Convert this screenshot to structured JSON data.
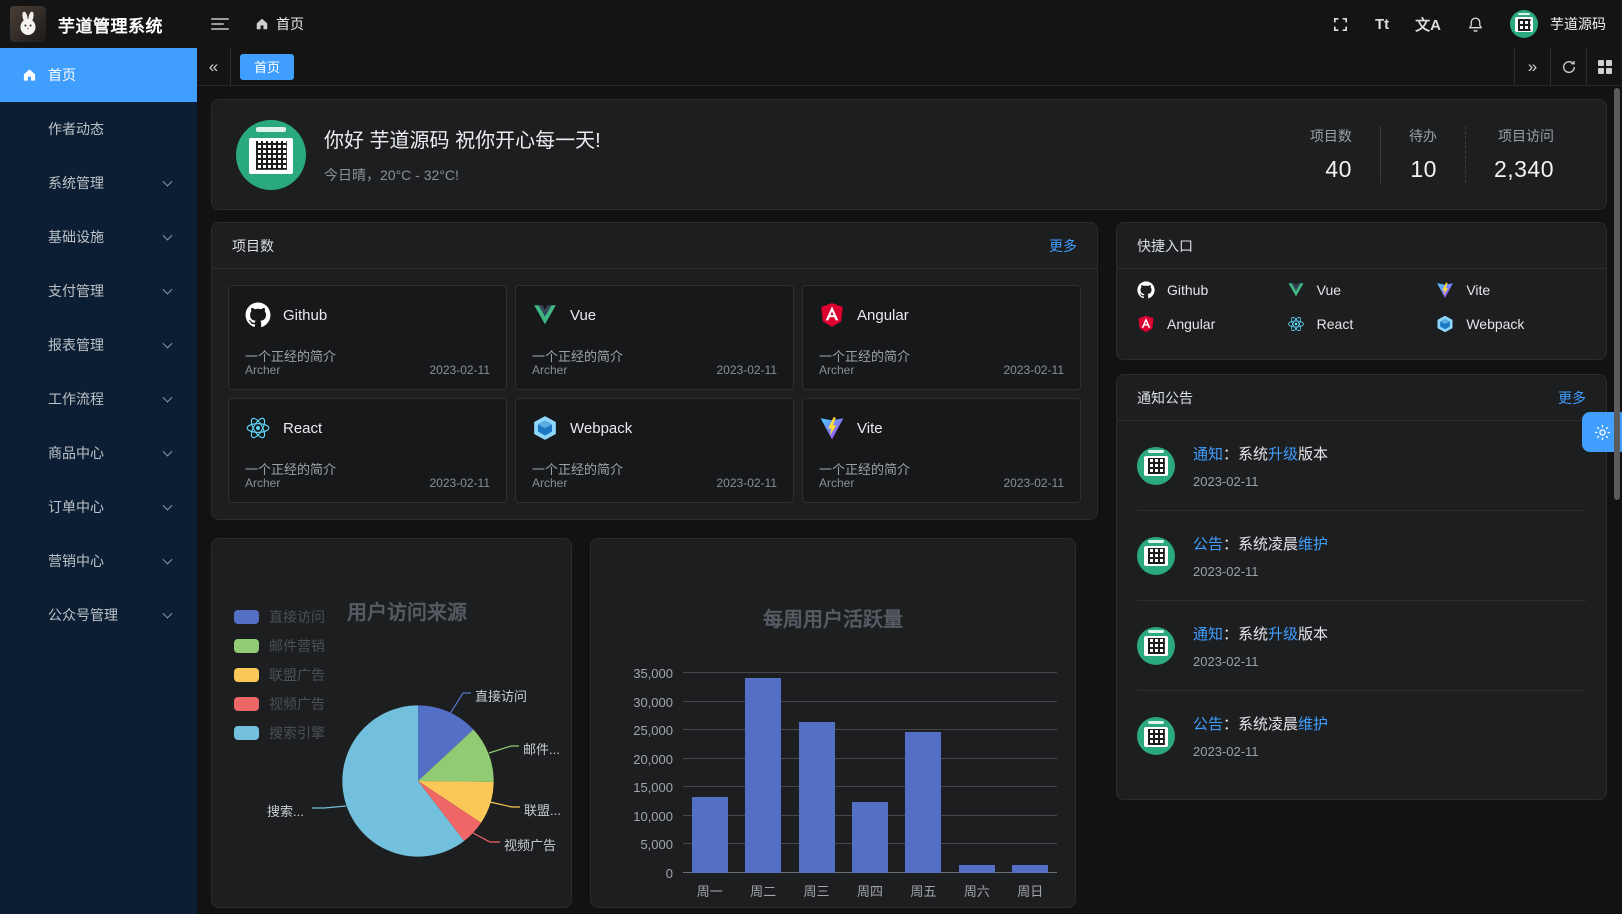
{
  "app": {
    "title": "芋道管理系统"
  },
  "header": {
    "breadcrumb_home": "首页",
    "font_icon_text": "Tt",
    "locale_icon_text": "文A",
    "user_name": "芋道源码"
  },
  "sidebar": {
    "items": [
      {
        "label": "首页",
        "active": true,
        "icon": "home",
        "arrow": false
      },
      {
        "label": "作者动态",
        "arrow": false
      },
      {
        "label": "系统管理",
        "arrow": true
      },
      {
        "label": "基础设施",
        "arrow": true
      },
      {
        "label": "支付管理",
        "arrow": true
      },
      {
        "label": "报表管理",
        "arrow": true
      },
      {
        "label": "工作流程",
        "arrow": true
      },
      {
        "label": "商品中心",
        "arrow": true
      },
      {
        "label": "订单中心",
        "arrow": true
      },
      {
        "label": "营销中心",
        "arrow": true
      },
      {
        "label": "公众号管理",
        "arrow": true
      }
    ]
  },
  "tabs": {
    "active": "首页",
    "collapse_icon": "«",
    "expand_icon": "»"
  },
  "welcome": {
    "greeting": "你好 芋道源码 祝你开心每一天!",
    "weather": "今日晴，20°C - 32°C!",
    "stats": [
      {
        "label": "项目数",
        "value": "40"
      },
      {
        "label": "待办",
        "value": "10"
      },
      {
        "label": "项目访问",
        "value": "2,340"
      }
    ]
  },
  "projects": {
    "title": "项目数",
    "more": "更多",
    "items": [
      {
        "name": "Github",
        "desc": "一个正经的简介",
        "author": "Archer",
        "date": "2023-02-11",
        "icon": "github"
      },
      {
        "name": "Vue",
        "desc": "一个正经的简介",
        "author": "Archer",
        "date": "2023-02-11",
        "icon": "vue"
      },
      {
        "name": "Angular",
        "desc": "一个正经的简介",
        "author": "Archer",
        "date": "2023-02-11",
        "icon": "angular"
      },
      {
        "name": "React",
        "desc": "一个正经的简介",
        "author": "Archer",
        "date": "2023-02-11",
        "icon": "react"
      },
      {
        "name": "Webpack",
        "desc": "一个正经的简介",
        "author": "Archer",
        "date": "2023-02-11",
        "icon": "webpack"
      },
      {
        "name": "Vite",
        "desc": "一个正经的简介",
        "author": "Archer",
        "date": "2023-02-11",
        "icon": "vite"
      }
    ]
  },
  "shortcuts": {
    "title": "快捷入口",
    "items": [
      {
        "label": "Github",
        "icon": "github"
      },
      {
        "label": "Vue",
        "icon": "vue"
      },
      {
        "label": "Vite",
        "icon": "vite"
      },
      {
        "label": "Angular",
        "icon": "angular"
      },
      {
        "label": "React",
        "icon": "react"
      },
      {
        "label": "Webpack",
        "icon": "webpack"
      }
    ]
  },
  "notices": {
    "title": "通知公告",
    "more": "更多",
    "items": [
      {
        "tag": "通知",
        "mid": "：系统",
        "hl": "升级",
        "suf": "版本",
        "date": "2023-02-11"
      },
      {
        "tag": "公告",
        "mid": "：系统凌晨",
        "hl": "维护",
        "suf": "",
        "date": "2023-02-11"
      },
      {
        "tag": "通知",
        "mid": "：系统",
        "hl": "升级",
        "suf": "版本",
        "date": "2023-02-11"
      },
      {
        "tag": "公告",
        "mid": "：系统凌晨",
        "hl": "维护",
        "suf": "",
        "date": "2023-02-11"
      }
    ]
  },
  "chart_data": [
    {
      "type": "pie",
      "title": "用户访问来源",
      "legend_position": "left-top",
      "legend": [
        "直接访问",
        "邮件营销",
        "联盟广告",
        "视频广告",
        "搜索引擎"
      ],
      "data": [
        {
          "name": "直接访问",
          "value": 335,
          "color": "#5470c6"
        },
        {
          "name": "邮件营销",
          "value": 310,
          "color": "#91cc75"
        },
        {
          "name": "联盟广告",
          "value": 234,
          "color": "#fac858"
        },
        {
          "name": "视频广告",
          "value": 135,
          "color": "#ee6666"
        },
        {
          "name": "搜索引擎",
          "value": 1548,
          "color": "#73c0de"
        }
      ],
      "labels_visible": [
        "直接访问",
        "邮件...",
        "联盟...",
        "视频广告",
        "搜索..."
      ]
    },
    {
      "type": "bar",
      "title": "每周用户活跃量",
      "categories": [
        "周一",
        "周二",
        "周三",
        "周四",
        "周五",
        "周六",
        "周日"
      ],
      "values": [
        13300,
        34200,
        26400,
        12400,
        24700,
        1400,
        1400
      ],
      "ylim": [
        0,
        35000
      ],
      "ytick_step": 5000,
      "bar_color": "#5470c6",
      "grid": true,
      "xlabel": "",
      "ylabel": ""
    }
  ],
  "colors": {
    "accent": "#409eff",
    "sidebar_bg": "#0b1e33",
    "header_bg": "#141414",
    "panel_bg": "#1d1e1f",
    "card_bg": "#17181a",
    "qr_green": "#2aa97f",
    "bar_blue": "#5470c6"
  }
}
